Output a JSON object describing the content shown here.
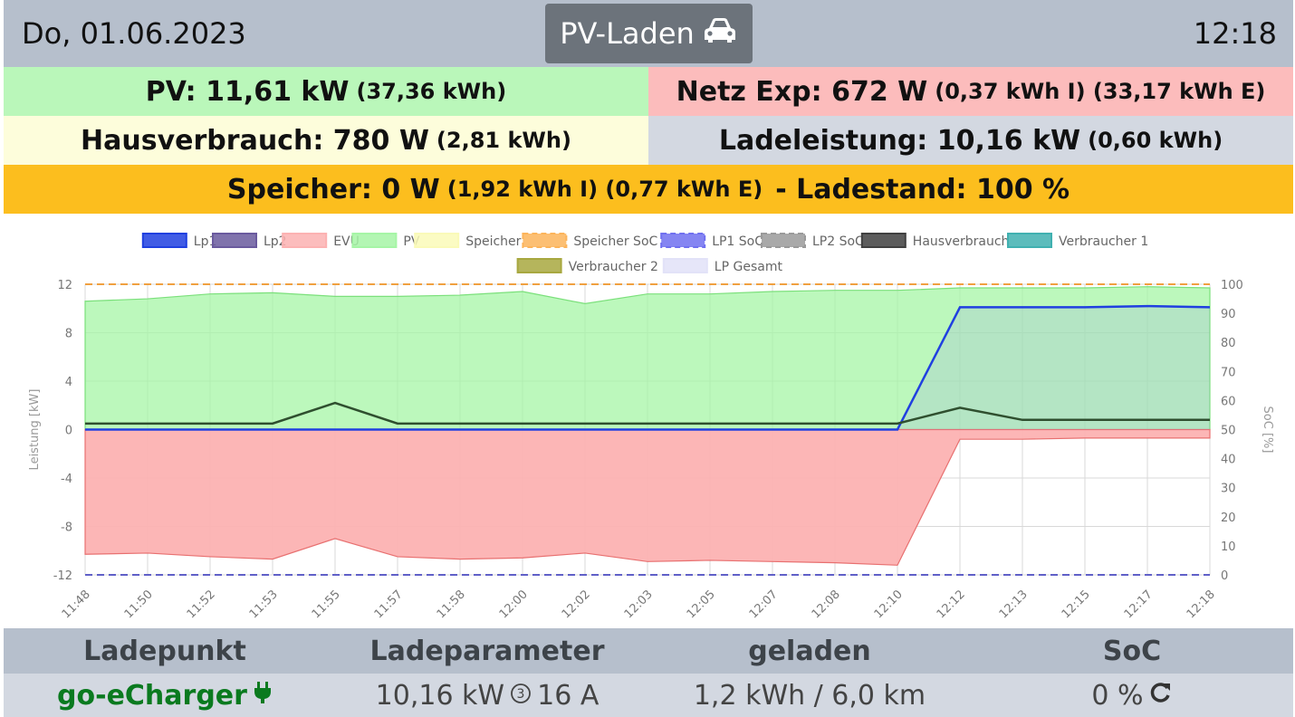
{
  "header": {
    "date": "Do, 01.06.2023",
    "mode_label": "PV-Laden",
    "mode_icon": "car-icon",
    "time": "12:18"
  },
  "status": {
    "pv_main": "PV: 11,61 kW",
    "pv_sub": "(37,36 kWh)",
    "netz_main": "Netz Exp: 672 W",
    "netz_sub": "(0,37 kWh I) (33,17 kWh E)",
    "haus_main": "Hausverbrauch: 780 W",
    "haus_sub": "(2,81 kWh)",
    "lade_main": "Ladeleistung: 10,16 kW",
    "lade_sub": "(0,60 kWh)",
    "speicher_main": "Speicher: 0 W",
    "speicher_sub": "(1,92 kWh I) (0,77 kWh E)",
    "speicher_tail": "- Ladestand: 100 %",
    "colors": {
      "pv": "#baf7ba",
      "netz": "#fcbcbc",
      "haus": "#fdfddb",
      "lade": "#d3d8e1",
      "speicher": "#fcbe1e"
    }
  },
  "chart_data": {
    "type": "area",
    "xlabel": "",
    "ylabel": "Leistung [kW]",
    "y2label": "SoC [%]",
    "ylim": [
      -12,
      12
    ],
    "y2lim": [
      0,
      100
    ],
    "yticks": [
      "12",
      "8",
      "4",
      "0",
      "-4",
      "-8",
      "-12"
    ],
    "y2ticks": [
      "100",
      "90",
      "80",
      "70",
      "60",
      "50",
      "40",
      "30",
      "20",
      "10",
      "0"
    ],
    "x_tick_labels": [
      "11:48",
      "11:50",
      "11:52",
      "11:53",
      "11:55",
      "11:57",
      "11:58",
      "12:00",
      "12:02",
      "12:03",
      "12:05",
      "12:07",
      "12:08",
      "12:10",
      "12:12",
      "12:13",
      "12:15",
      "12:17",
      "12:18"
    ],
    "grid": true,
    "legend_position": "top",
    "legend": [
      {
        "name": "Lp1",
        "color": "#2040e0",
        "style": "solid"
      },
      {
        "name": "Lp2",
        "color": "#6a5a9e",
        "style": "solid"
      },
      {
        "name": "EVU",
        "color": "#fcb2b2",
        "style": "solid"
      },
      {
        "name": "PV",
        "color": "#a6f5a6",
        "style": "solid"
      },
      {
        "name": "Speicher",
        "color": "#fafab8",
        "style": "solid"
      },
      {
        "name": "Speicher SoC",
        "color": "#fcb45a",
        "style": "dashed"
      },
      {
        "name": "LP1 SoC",
        "color": "#7070f0",
        "style": "dashed"
      },
      {
        "name": "LP2 SoC",
        "color": "#9a9a9a",
        "style": "dashed"
      },
      {
        "name": "Hausverbrauch",
        "color": "#404040",
        "style": "solid"
      },
      {
        "name": "Verbraucher 1",
        "color": "#40b0b0",
        "style": "solid"
      },
      {
        "name": "Verbraucher 2",
        "color": "#a8a840",
        "style": "solid"
      },
      {
        "name": "LP Gesamt",
        "color": "#e2e2f8",
        "style": "solid"
      }
    ],
    "series": [
      {
        "name": "PV",
        "values": [
          10.6,
          10.8,
          11.2,
          11.3,
          11.0,
          11.0,
          11.1,
          11.4,
          10.4,
          11.2,
          11.2,
          11.4,
          11.5,
          11.5,
          11.7,
          11.7,
          11.7,
          11.8,
          11.7
        ]
      },
      {
        "name": "EVU",
        "values": [
          -10.3,
          -10.2,
          -10.5,
          -10.7,
          -9.0,
          -10.5,
          -10.7,
          -10.6,
          -10.2,
          -10.9,
          -10.8,
          -10.9,
          -11.0,
          -11.2,
          -0.8,
          -0.8,
          -0.7,
          -0.7,
          -0.7
        ]
      },
      {
        "name": "Hausverbrauch",
        "values": [
          0.5,
          0.5,
          0.5,
          0.5,
          2.2,
          0.5,
          0.5,
          0.5,
          0.5,
          0.5,
          0.5,
          0.5,
          0.5,
          0.5,
          1.8,
          0.8,
          0.8,
          0.8,
          0.8
        ]
      },
      {
        "name": "Lp1",
        "values": [
          0,
          0,
          0,
          0,
          0,
          0,
          0,
          0,
          0,
          0,
          0,
          0,
          0,
          0,
          10.1,
          10.1,
          10.1,
          10.2,
          10.1
        ]
      },
      {
        "name": "Speicher SoC",
        "axis": "y2",
        "values": [
          100,
          100,
          100,
          100,
          100,
          100,
          100,
          100,
          100,
          100,
          100,
          100,
          100,
          100,
          100,
          100,
          100,
          100,
          100
        ]
      },
      {
        "name": "LP1 SoC",
        "axis": "y2",
        "values": [
          0,
          0,
          0,
          0,
          0,
          0,
          0,
          0,
          0,
          0,
          0,
          0,
          0,
          0,
          0,
          0,
          0,
          0,
          0
        ]
      }
    ]
  },
  "table": {
    "headers": [
      "Ladepunkt",
      "Ladeparameter",
      "geladen",
      "SoC"
    ],
    "rows": [
      {
        "ladepunkt": "go-eCharger",
        "ladepunkt_icon": "plug-icon",
        "power": "10,16 kW",
        "phases_icon": "phase-3-icon",
        "phases": "3",
        "current": "16 A",
        "geladen": "1,2 kWh / 6,0 km",
        "soc": "0 %",
        "soc_icon": "refresh-icon"
      }
    ]
  }
}
